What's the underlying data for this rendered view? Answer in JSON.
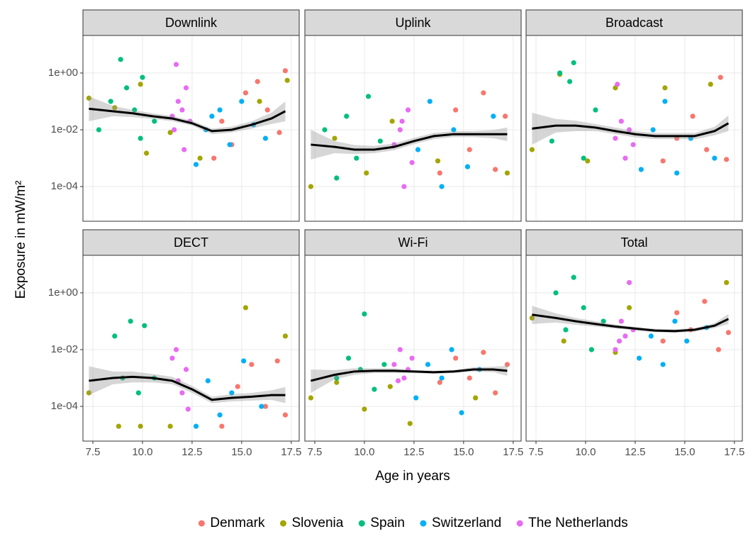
{
  "chart_data": {
    "type": "scatter",
    "xlabel": "Age in years",
    "ylabel": "Exposure in mW/m²",
    "log_y": true,
    "grid": true,
    "legend_position": "bottom",
    "xlim": [
      7.0,
      17.9
    ],
    "ylim": [
      6e-06,
      21
    ],
    "xticks": [
      7.5,
      {
        "value": 10,
        "label": "10.0"
      },
      12.5,
      {
        "value": 15,
        "label": "15.0"
      },
      17.5
    ],
    "yticks": [
      {
        "value": 0.0001,
        "label": "1e-04"
      },
      {
        "value": 0.01,
        "label": "1e-02"
      },
      {
        "value": 1,
        "label": "1e+00"
      }
    ],
    "panels": [
      {
        "title": "Downlink",
        "series": [
          {
            "name": "Denmark",
            "color": "#F8766D",
            "x": [
              13.6,
              14.5,
              15.2,
              15.8,
              16.3,
              16.9,
              17.2,
              14.0
            ],
            "y": [
              0.001,
              0.003,
              0.2,
              0.5,
              0.05,
              0.008,
              1.2,
              0.02
            ]
          },
          {
            "name": "Slovenia",
            "color": "#A3A500",
            "x": [
              7.3,
              8.6,
              10.2,
              11.4,
              12.9,
              15.9,
              17.3,
              9.9
            ],
            "y": [
              0.13,
              0.06,
              0.0015,
              0.008,
              0.001,
              0.1,
              0.55,
              0.4
            ]
          },
          {
            "name": "Spain",
            "color": "#00BF7D",
            "x": [
              7.8,
              8.4,
              8.9,
              9.2,
              9.6,
              10.0,
              10.6,
              9.9
            ],
            "y": [
              0.01,
              0.1,
              3,
              0.3,
              0.05,
              0.7,
              0.02,
              0.005
            ]
          },
          {
            "name": "Switzerland",
            "color": "#00B0F6",
            "x": [
              12.7,
              13.2,
              13.9,
              14.4,
              15.0,
              15.6,
              16.2,
              13.5
            ],
            "y": [
              0.0006,
              0.01,
              0.05,
              0.003,
              0.1,
              0.015,
              0.005,
              0.03
            ]
          },
          {
            "name": "The Netherlands",
            "color": "#E76BF3",
            "x": [
              11.5,
              11.8,
              12.0,
              12.2,
              12.4,
              11.7,
              12.1,
              11.6
            ],
            "y": [
              0.03,
              0.1,
              0.05,
              0.3,
              0.02,
              2,
              0.002,
              0.01
            ]
          }
        ],
        "smooth": {
          "x": [
            7.3,
            8.5,
            9.5,
            10.5,
            11.5,
            12.5,
            13.5,
            14.5,
            15.5,
            16.5,
            17.2
          ],
          "y": [
            0.055,
            0.045,
            0.038,
            0.03,
            0.025,
            0.017,
            0.009,
            0.01,
            0.015,
            0.025,
            0.045
          ],
          "ymin": [
            0.02,
            0.03,
            0.028,
            0.024,
            0.02,
            0.014,
            0.007,
            0.008,
            0.011,
            0.016,
            0.02
          ],
          "ymax": [
            0.15,
            0.07,
            0.05,
            0.038,
            0.031,
            0.021,
            0.011,
            0.013,
            0.02,
            0.04,
            0.1
          ]
        }
      },
      {
        "title": "Uplink",
        "series": [
          {
            "name": "Denmark",
            "color": "#F8766D",
            "x": [
              13.8,
              14.6,
              15.3,
              16.0,
              16.6,
              17.1
            ],
            "y": [
              0.0003,
              0.05,
              0.002,
              0.2,
              0.0004,
              0.03
            ]
          },
          {
            "name": "Slovenia",
            "color": "#A3A500",
            "x": [
              7.3,
              8.5,
              10.1,
              11.4,
              13.7,
              17.2
            ],
            "y": [
              0.0001,
              0.005,
              0.0003,
              0.02,
              0.0008,
              0.0003
            ]
          },
          {
            "name": "Spain",
            "color": "#00BF7D",
            "x": [
              8.0,
              8.6,
              9.1,
              9.6,
              10.2,
              10.8
            ],
            "y": [
              0.01,
              0.0002,
              0.03,
              0.001,
              0.15,
              0.004
            ]
          },
          {
            "name": "Switzerland",
            "color": "#00B0F6",
            "x": [
              12.7,
              13.3,
              13.9,
              14.5,
              15.2,
              16.5
            ],
            "y": [
              0.002,
              0.1,
              0.0001,
              0.01,
              0.0005,
              0.03
            ]
          },
          {
            "name": "The Netherlands",
            "color": "#E76BF3",
            "x": [
              11.5,
              11.8,
              12.0,
              12.2,
              12.4,
              11.9
            ],
            "y": [
              0.003,
              0.01,
              0.0001,
              0.05,
              0.0007,
              0.02
            ]
          }
        ],
        "smooth": {
          "x": [
            7.3,
            8.5,
            9.5,
            10.5,
            11.5,
            12.5,
            13.5,
            14.5,
            15.5,
            16.5,
            17.2
          ],
          "y": [
            0.003,
            0.0025,
            0.002,
            0.002,
            0.0025,
            0.004,
            0.006,
            0.007,
            0.007,
            0.007,
            0.007
          ],
          "ymin": [
            0.0009,
            0.0015,
            0.0014,
            0.0015,
            0.0019,
            0.0031,
            0.0047,
            0.0055,
            0.0055,
            0.005,
            0.004
          ],
          "ymax": [
            0.01,
            0.004,
            0.0029,
            0.0027,
            0.0033,
            0.0052,
            0.0077,
            0.009,
            0.009,
            0.0098,
            0.012
          ]
        }
      },
      {
        "title": "Broadcast",
        "series": [
          {
            "name": "Denmark",
            "color": "#F8766D",
            "x": [
              13.9,
              14.6,
              15.4,
              16.1,
              16.8,
              17.1
            ],
            "y": [
              0.0008,
              0.005,
              0.03,
              0.002,
              0.7,
              0.0009
            ]
          },
          {
            "name": "Slovenia",
            "color": "#A3A500",
            "x": [
              7.3,
              8.7,
              10.1,
              11.5,
              14.0,
              16.3
            ],
            "y": [
              0.002,
              0.9,
              0.0008,
              0.3,
              0.3,
              0.4
            ]
          },
          {
            "name": "Spain",
            "color": "#00BF7D",
            "x": [
              8.3,
              8.7,
              9.2,
              9.4,
              9.9,
              10.5
            ],
            "y": [
              0.004,
              1,
              0.5,
              2.3,
              0.001,
              0.05
            ]
          },
          {
            "name": "Switzerland",
            "color": "#00B0F6",
            "x": [
              12.8,
              13.4,
              14.0,
              14.6,
              15.3,
              16.5
            ],
            "y": [
              0.0004,
              0.01,
              0.1,
              0.0003,
              0.005,
              0.001
            ]
          },
          {
            "name": "The Netherlands",
            "color": "#E76BF3",
            "x": [
              11.5,
              11.8,
              12.0,
              12.2,
              12.4,
              11.6
            ],
            "y": [
              0.005,
              0.02,
              0.001,
              0.01,
              0.003,
              0.4
            ]
          }
        ],
        "smooth": {
          "x": [
            7.3,
            8.5,
            9.5,
            10.5,
            11.5,
            12.5,
            13.5,
            14.5,
            15.5,
            16.5,
            17.2
          ],
          "y": [
            0.011,
            0.014,
            0.014,
            0.012,
            0.009,
            0.007,
            0.006,
            0.006,
            0.006,
            0.009,
            0.017
          ],
          "ymin": [
            0.003,
            0.008,
            0.009,
            0.009,
            0.007,
            0.0054,
            0.0047,
            0.0047,
            0.0046,
            0.0064,
            0.009
          ],
          "ymax": [
            0.04,
            0.024,
            0.021,
            0.016,
            0.012,
            0.009,
            0.0077,
            0.0077,
            0.0078,
            0.0127,
            0.032
          ]
        }
      },
      {
        "title": "DECT",
        "series": [
          {
            "name": "Denmark",
            "color": "#F8766D",
            "x": [
              14.0,
              14.8,
              15.5,
              16.2,
              16.8,
              17.2
            ],
            "y": [
              2e-05,
              0.0005,
              0.003,
              0.0001,
              0.004,
              5e-05
            ]
          },
          {
            "name": "Slovenia",
            "color": "#A3A500",
            "x": [
              7.3,
              8.8,
              9.9,
              11.4,
              15.2,
              17.2
            ],
            "y": [
              0.0003,
              2e-05,
              2e-05,
              2e-05,
              0.3,
              0.03
            ]
          },
          {
            "name": "Spain",
            "color": "#00BF7D",
            "x": [
              8.6,
              9.0,
              9.4,
              9.8,
              10.1,
              10.6
            ],
            "y": [
              0.03,
              0.001,
              0.1,
              0.0003,
              0.07,
              0.001
            ]
          },
          {
            "name": "Switzerland",
            "color": "#00B0F6",
            "x": [
              12.7,
              13.3,
              13.9,
              14.5,
              15.1,
              16.0
            ],
            "y": [
              2e-05,
              0.0008,
              5e-05,
              0.0003,
              0.004,
              0.0001
            ]
          },
          {
            "name": "The Netherlands",
            "color": "#E76BF3",
            "x": [
              11.5,
              11.8,
              12.0,
              12.2,
              12.3,
              11.7
            ],
            "y": [
              0.005,
              0.0008,
              0.0003,
              0.002,
              8e-05,
              0.01
            ]
          }
        ],
        "smooth": {
          "x": [
            7.3,
            8.5,
            9.5,
            10.5,
            11.5,
            12.5,
            13.5,
            14.5,
            15.5,
            16.5,
            17.2
          ],
          "y": [
            0.0008,
            0.001,
            0.0011,
            0.001,
            0.0008,
            0.0004,
            0.00017,
            0.0002,
            0.00022,
            0.00025,
            0.00025
          ],
          "ymin": [
            0.00025,
            0.0006,
            0.0007,
            0.0007,
            0.0006,
            0.0003,
            0.00013,
            0.00015,
            0.00016,
            0.00017,
            0.00013
          ],
          "ymax": [
            0.0026,
            0.0017,
            0.0017,
            0.0014,
            0.0011,
            0.00053,
            0.00022,
            0.00027,
            0.0003,
            0.00037,
            0.00048
          ]
        }
      },
      {
        "title": "Wi-Fi",
        "series": [
          {
            "name": "Denmark",
            "color": "#F8766D",
            "x": [
              13.8,
              14.6,
              15.3,
              16.0,
              16.6,
              17.2
            ],
            "y": [
              0.0007,
              0.005,
              0.001,
              0.008,
              0.0003,
              0.003
            ]
          },
          {
            "name": "Slovenia",
            "color": "#A3A500",
            "x": [
              7.3,
              8.6,
              10.0,
              11.3,
              12.3,
              15.6
            ],
            "y": [
              0.0002,
              0.0007,
              8e-05,
              0.0005,
              2.5e-05,
              0.0002
            ]
          },
          {
            "name": "Spain",
            "color": "#00BF7D",
            "x": [
              8.6,
              9.2,
              9.8,
              10.0,
              10.5,
              11.0
            ],
            "y": [
              0.001,
              0.005,
              0.002,
              0.18,
              0.0004,
              0.003
            ]
          },
          {
            "name": "Switzerland",
            "color": "#00B0F6",
            "x": [
              12.6,
              13.2,
              13.9,
              14.4,
              14.9,
              15.8
            ],
            "y": [
              0.0002,
              0.003,
              0.001,
              0.01,
              6e-05,
              0.002
            ]
          },
          {
            "name": "The Netherlands",
            "color": "#E76BF3",
            "x": [
              11.5,
              11.8,
              12.0,
              12.2,
              12.4,
              11.7
            ],
            "y": [
              0.003,
              0.01,
              0.001,
              0.002,
              0.005,
              0.0008
            ]
          }
        ],
        "smooth": {
          "x": [
            7.3,
            8.5,
            9.5,
            10.5,
            11.5,
            12.5,
            13.5,
            14.5,
            15.5,
            16.5,
            17.2
          ],
          "y": [
            0.0008,
            0.0013,
            0.0017,
            0.0018,
            0.0018,
            0.0017,
            0.0016,
            0.0017,
            0.002,
            0.002,
            0.0018
          ],
          "ymin": [
            0.0003,
            0.0009,
            0.0013,
            0.0015,
            0.0015,
            0.0015,
            0.0014,
            0.0015,
            0.0017,
            0.0016,
            0.0012
          ],
          "ymax": [
            0.002,
            0.0019,
            0.0022,
            0.0022,
            0.0022,
            0.0019,
            0.0018,
            0.0019,
            0.0024,
            0.0025,
            0.0027
          ]
        }
      },
      {
        "title": "Total",
        "series": [
          {
            "name": "Denmark",
            "color": "#F8766D",
            "x": [
              13.9,
              14.6,
              15.3,
              16.0,
              16.7,
              17.2
            ],
            "y": [
              0.02,
              0.2,
              0.05,
              0.5,
              0.01,
              0.04
            ]
          },
          {
            "name": "Slovenia",
            "color": "#A3A500",
            "x": [
              7.3,
              8.9,
              10.3,
              11.5,
              12.2,
              17.1
            ],
            "y": [
              0.13,
              0.02,
              0.01,
              0.008,
              0.3,
              2.3
            ]
          },
          {
            "name": "Spain",
            "color": "#00BF7D",
            "x": [
              8.5,
              9.0,
              9.4,
              9.9,
              10.3,
              10.9
            ],
            "y": [
              1,
              0.05,
              3.5,
              0.3,
              0.01,
              0.1
            ]
          },
          {
            "name": "Switzerland",
            "color": "#00B0F6",
            "x": [
              12.7,
              13.3,
              13.9,
              14.5,
              15.1,
              16.1
            ],
            "y": [
              0.005,
              0.03,
              0.003,
              0.1,
              0.02,
              0.06
            ]
          },
          {
            "name": "The Netherlands",
            "color": "#E76BF3",
            "x": [
              11.5,
              11.8,
              12.0,
              12.2,
              12.4,
              11.7
            ],
            "y": [
              0.01,
              0.1,
              0.03,
              2.3,
              0.05,
              0.02
            ]
          }
        ],
        "smooth": {
          "x": [
            7.3,
            8.5,
            9.5,
            10.5,
            11.5,
            12.5,
            13.5,
            14.5,
            15.5,
            16.5,
            17.2
          ],
          "y": [
            0.17,
            0.13,
            0.1,
            0.08,
            0.065,
            0.055,
            0.047,
            0.045,
            0.05,
            0.07,
            0.12
          ],
          "ymin": [
            0.08,
            0.09,
            0.075,
            0.065,
            0.055,
            0.048,
            0.041,
            0.039,
            0.043,
            0.057,
            0.08
          ],
          "ymax": [
            0.35,
            0.19,
            0.13,
            0.1,
            0.077,
            0.063,
            0.054,
            0.052,
            0.058,
            0.086,
            0.18
          ]
        }
      }
    ]
  }
}
